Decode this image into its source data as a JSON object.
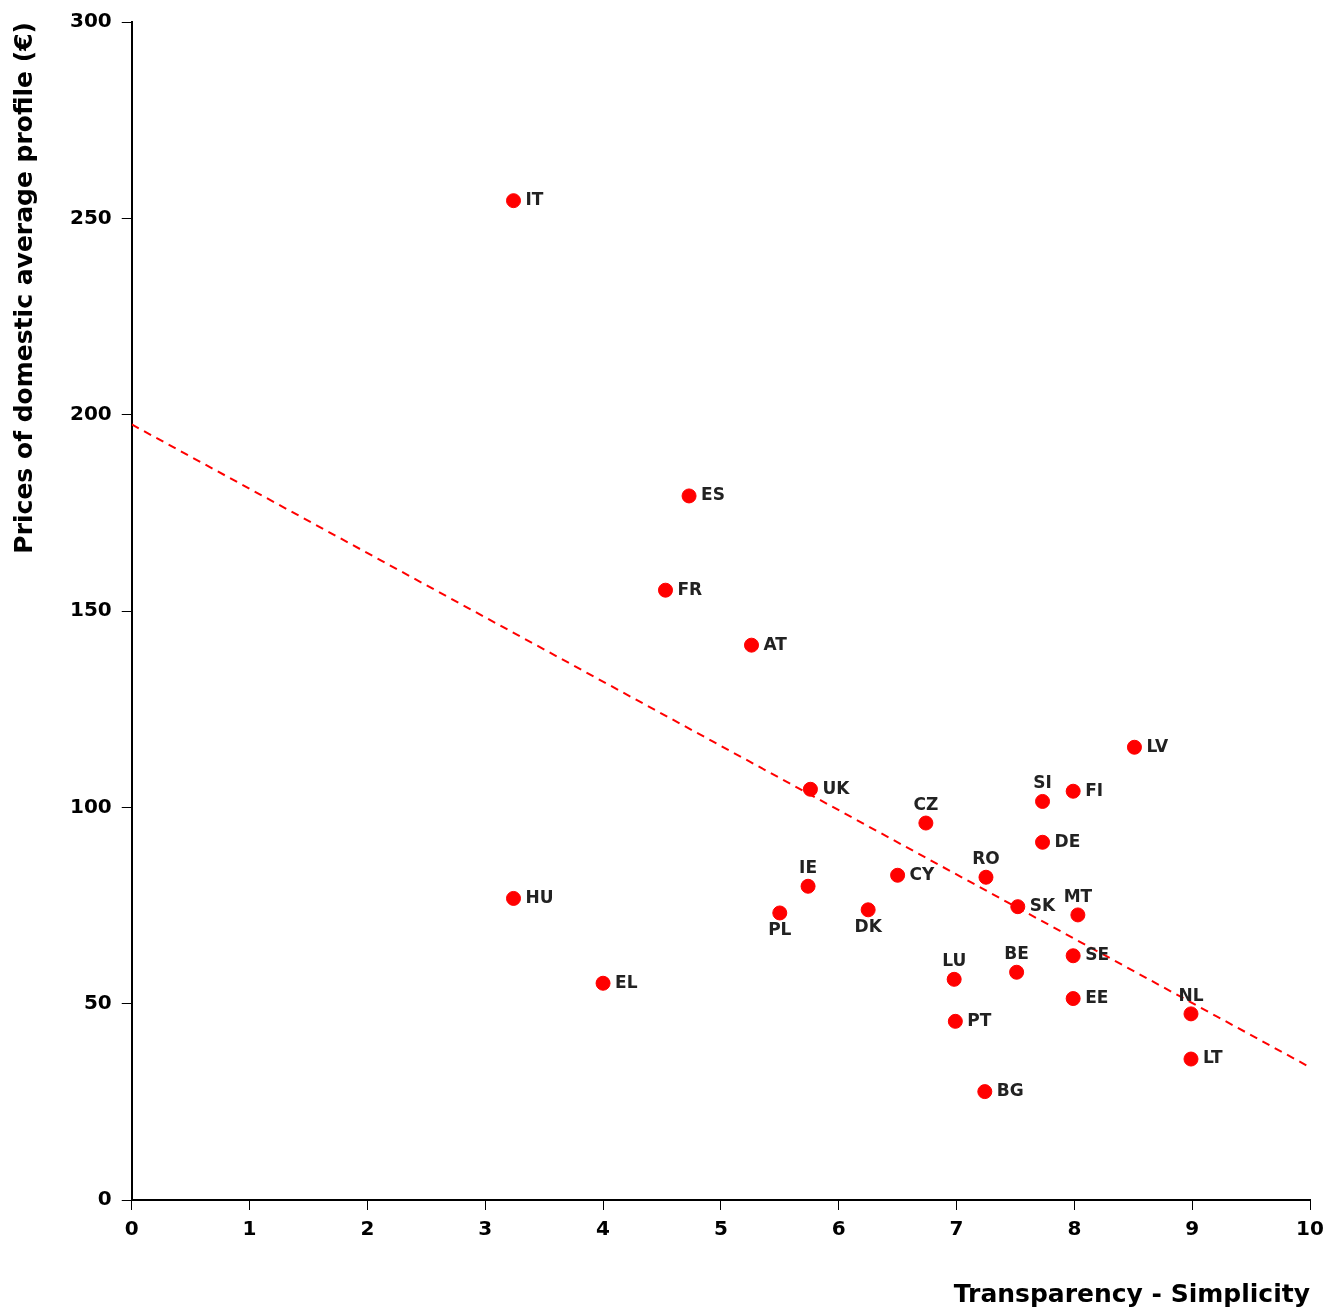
{
  "chart_data": {
    "type": "scatter",
    "xlabel": "Transparency - Simplicity",
    "ylabel": "Prices of domestic average profile (€)",
    "xlim": [
      0,
      10
    ],
    "xticks": [
      0,
      1,
      2,
      3,
      4,
      5,
      6,
      7,
      8,
      9,
      10
    ],
    "ylim": [
      0,
      300
    ],
    "yticks": [
      0,
      50,
      100,
      150,
      200,
      250,
      300
    ],
    "grid": false,
    "legend": false,
    "marker": "circle",
    "series": [
      {
        "color": "#ff0000",
        "x": [
          3.24,
          4.73,
          4.53,
          5.26,
          5.76,
          6.74,
          7.73,
          7.99,
          8.51,
          7.73,
          7.25,
          6.5,
          5.74,
          3.24,
          5.5,
          6.25,
          7.52,
          8.03,
          7.99,
          7.51,
          6.98,
          7.99,
          8.99,
          4.0,
          6.99,
          8.99,
          7.24
        ],
        "values": [
          254.5,
          179.3,
          155.3,
          141.3,
          104.6,
          96.0,
          101.5,
          104.1,
          115.3,
          91.1,
          82.2,
          82.7,
          79.9,
          76.8,
          73.1,
          73.9,
          74.7,
          72.6,
          62.2,
          58.0,
          56.2,
          51.3,
          47.4,
          55.2,
          45.5,
          35.9,
          27.6
        ],
        "value_labels": [
          "IT",
          "ES",
          "FR",
          "AT",
          "UK",
          "CZ",
          "SI",
          "FI",
          "LV",
          "DE",
          "RO",
          "CY",
          "IE",
          "HU",
          "PL",
          "DK",
          "SK",
          "MT",
          "SE",
          "BE",
          "LU",
          "EE",
          "NL",
          "EL",
          "PT",
          "LT",
          "BG"
        ]
      },
      {
        "type": "line",
        "color": "#ff0000",
        "line_style": "dashed",
        "marker": "none",
        "x": [
          0,
          10
        ],
        "values": [
          197.5,
          33.8
        ]
      }
    ]
  }
}
